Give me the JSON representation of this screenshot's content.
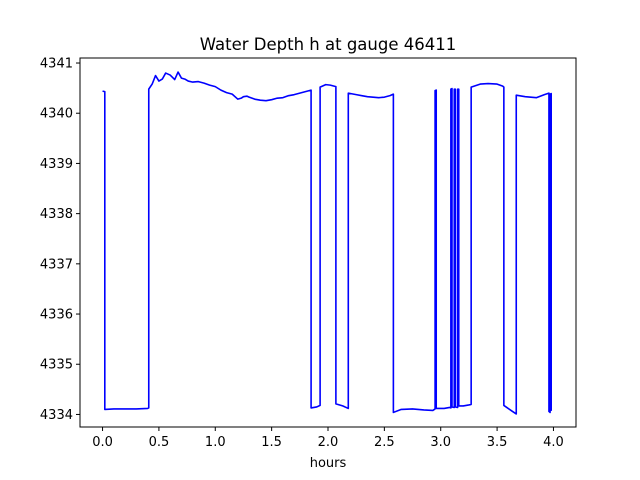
{
  "chart_data": {
    "type": "line",
    "title": "Water Depth h at gauge 46411",
    "xlabel": "hours",
    "ylabel": "",
    "xlim": [
      -0.2,
      4.2
    ],
    "ylim": [
      4333.75,
      4341.1
    ],
    "xticks": [
      0.0,
      0.5,
      1.0,
      1.5,
      2.0,
      2.5,
      3.0,
      3.5,
      4.0
    ],
    "xtick_labels": [
      "0.0",
      "0.5",
      "1.0",
      "1.5",
      "2.0",
      "2.5",
      "3.0",
      "3.5",
      "4.0"
    ],
    "yticks": [
      4334,
      4335,
      4336,
      4337,
      4338,
      4339,
      4340,
      4341
    ],
    "ytick_labels": [
      "4334",
      "4335",
      "4336",
      "4337",
      "4338",
      "4339",
      "4340",
      "4341"
    ],
    "grid": false,
    "color": "#0000ff",
    "series": [
      {
        "x": [
          0.0,
          0.02,
          0.02,
          0.1,
          0.2,
          0.3,
          0.4,
          0.41,
          0.41,
          0.44,
          0.47,
          0.5,
          0.53,
          0.56,
          0.6,
          0.64,
          0.67,
          0.7,
          0.73,
          0.76,
          0.8,
          0.85,
          0.9,
          0.95,
          1.0,
          1.05,
          1.1,
          1.15,
          1.2,
          1.23,
          1.25,
          1.28,
          1.3,
          1.35,
          1.4,
          1.45,
          1.5,
          1.55,
          1.6,
          1.65,
          1.7,
          1.75,
          1.8,
          1.85,
          1.85,
          1.9,
          1.93,
          1.93,
          1.98,
          2.02,
          2.07,
          2.07,
          2.13,
          2.18,
          2.18,
          2.25,
          2.3,
          2.35,
          2.4,
          2.45,
          2.5,
          2.55,
          2.58,
          2.58,
          2.65,
          2.75,
          2.85,
          2.93,
          2.95,
          2.95,
          2.96,
          2.96,
          2.98,
          3.03,
          3.08,
          3.09,
          3.09,
          3.1,
          3.1,
          3.12,
          3.12,
          3.13,
          3.13,
          3.15,
          3.15,
          3.16,
          3.16,
          3.2,
          3.25,
          3.27,
          3.27,
          3.35,
          3.42,
          3.5,
          3.55,
          3.56,
          3.56,
          3.63,
          3.67,
          3.67,
          3.75,
          3.85,
          3.92,
          3.96,
          3.96,
          3.97,
          3.97,
          3.98,
          3.98
        ],
        "y": [
          4340.44,
          4340.43,
          4334.1,
          4334.11,
          4334.11,
          4334.11,
          4334.12,
          4334.13,
          4340.48,
          4340.58,
          4340.75,
          4340.64,
          4340.68,
          4340.8,
          4340.76,
          4340.67,
          4340.82,
          4340.7,
          4340.68,
          4340.64,
          4340.62,
          4340.63,
          4340.6,
          4340.56,
          4340.53,
          4340.46,
          4340.41,
          4340.38,
          4340.28,
          4340.3,
          4340.33,
          4340.34,
          4340.32,
          4340.28,
          4340.26,
          4340.25,
          4340.27,
          4340.3,
          4340.31,
          4340.35,
          4340.37,
          4340.4,
          4340.43,
          4340.46,
          4334.13,
          4334.15,
          4334.18,
          4340.52,
          4340.57,
          4340.56,
          4340.53,
          4334.21,
          4334.17,
          4334.12,
          4340.4,
          4340.37,
          4340.35,
          4340.33,
          4340.32,
          4340.31,
          4340.32,
          4340.35,
          4340.38,
          4334.04,
          4334.1,
          4334.11,
          4334.09,
          4334.08,
          4334.11,
          4340.45,
          4340.46,
          4334.12,
          4334.12,
          4334.12,
          4334.14,
          4334.13,
          4340.48,
          4340.49,
          4334.15,
          4334.14,
          4340.48,
          4340.48,
          4334.15,
          4334.14,
          4340.48,
          4340.48,
          4334.17,
          4334.17,
          4334.19,
          4334.2,
          4340.52,
          4340.58,
          4340.59,
          4340.58,
          4340.54,
          4340.52,
          4334.18,
          4334.07,
          4334.01,
          4340.36,
          4340.33,
          4340.31,
          4340.37,
          4340.4,
          4334.06,
          4334.04,
          4340.38,
          4340.39,
          4334.07
        ]
      }
    ]
  }
}
